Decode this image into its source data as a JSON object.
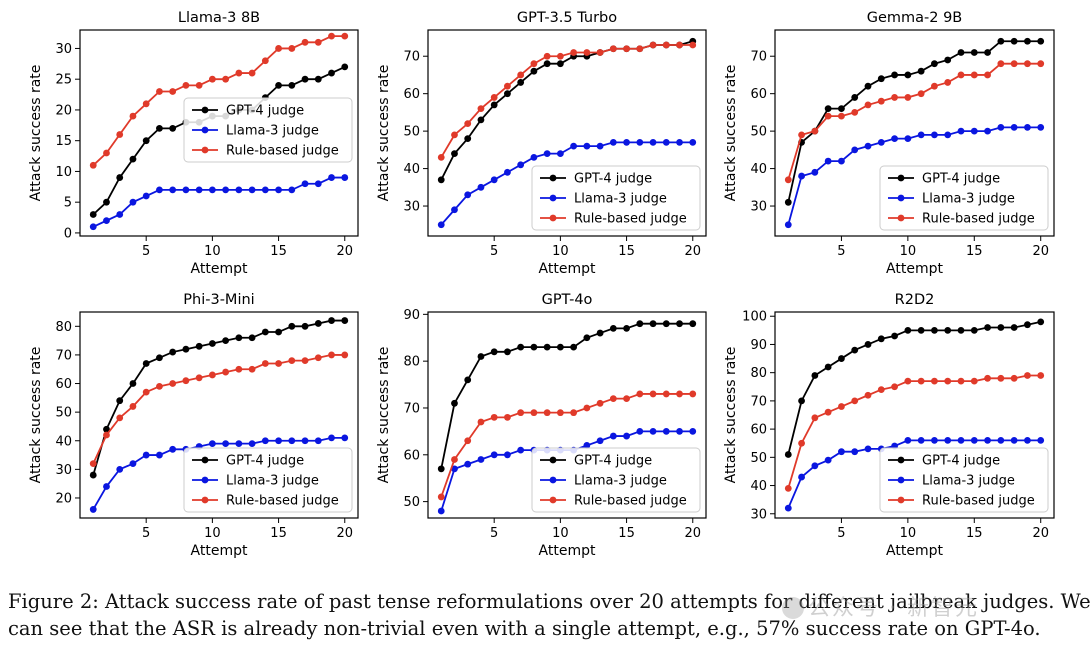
{
  "colors": {
    "gpt4": "#000000",
    "llama3": "#0a16e0",
    "rule": "#e03a2a"
  },
  "chart_data": [
    {
      "type": "line",
      "title": "Llama-3 8B",
      "xlabel": "Attempt",
      "ylabel": "Attack success rate",
      "xlim": [
        0,
        21
      ],
      "ylim": [
        -0.5,
        33
      ],
      "xticks": [
        5,
        10,
        15,
        20
      ],
      "yticks": [
        0,
        5,
        10,
        15,
        20,
        25,
        30
      ],
      "legend": "center-right",
      "x": [
        1,
        2,
        3,
        4,
        5,
        6,
        7,
        8,
        9,
        10,
        11,
        12,
        13,
        14,
        15,
        16,
        17,
        18,
        19,
        20
      ],
      "series": [
        {
          "name": "GPT-4 judge",
          "values": [
            3,
            5,
            9,
            12,
            15,
            17,
            17,
            18,
            18,
            19,
            19,
            20,
            20,
            22,
            24,
            24,
            25,
            25,
            26,
            27
          ]
        },
        {
          "name": "Llama-3 judge",
          "values": [
            1,
            2,
            3,
            5,
            6,
            7,
            7,
            7,
            7,
            7,
            7,
            7,
            7,
            7,
            7,
            7,
            8,
            8,
            9,
            9
          ]
        },
        {
          "name": "Rule-based judge",
          "values": [
            11,
            13,
            16,
            19,
            21,
            23,
            23,
            24,
            24,
            25,
            25,
            26,
            26,
            28,
            30,
            30,
            31,
            31,
            32,
            32
          ]
        }
      ]
    },
    {
      "type": "line",
      "title": "GPT-3.5 Turbo",
      "xlabel": "Attempt",
      "ylabel": "Attack success rate",
      "xlim": [
        0,
        21
      ],
      "ylim": [
        22,
        77
      ],
      "xticks": [
        5,
        10,
        15,
        20
      ],
      "yticks": [
        30,
        40,
        50,
        60,
        70
      ],
      "legend": "lower-right",
      "x": [
        1,
        2,
        3,
        4,
        5,
        6,
        7,
        8,
        9,
        10,
        11,
        12,
        13,
        14,
        15,
        16,
        17,
        18,
        19,
        20
      ],
      "series": [
        {
          "name": "GPT-4 judge",
          "values": [
            37,
            44,
            48,
            53,
            57,
            60,
            63,
            66,
            68,
            68,
            70,
            70,
            71,
            72,
            72,
            72,
            73,
            73,
            73,
            74
          ]
        },
        {
          "name": "Llama-3 judge",
          "values": [
            25,
            29,
            33,
            35,
            37,
            39,
            41,
            43,
            44,
            44,
            46,
            46,
            46,
            47,
            47,
            47,
            47,
            47,
            47,
            47
          ]
        },
        {
          "name": "Rule-based judge",
          "values": [
            43,
            49,
            52,
            56,
            59,
            62,
            65,
            68,
            70,
            70,
            71,
            71,
            71,
            72,
            72,
            72,
            73,
            73,
            73,
            73
          ]
        }
      ]
    },
    {
      "type": "line",
      "title": "Gemma-2 9B",
      "xlabel": "Attempt",
      "ylabel": "Attack success rate",
      "xlim": [
        0,
        21
      ],
      "ylim": [
        22,
        77
      ],
      "xticks": [
        5,
        10,
        15,
        20
      ],
      "yticks": [
        30,
        40,
        50,
        60,
        70
      ],
      "legend": "lower-right",
      "x": [
        1,
        2,
        3,
        4,
        5,
        6,
        7,
        8,
        9,
        10,
        11,
        12,
        13,
        14,
        15,
        16,
        17,
        18,
        19,
        20
      ],
      "series": [
        {
          "name": "GPT-4 judge",
          "values": [
            31,
            47,
            50,
            56,
            56,
            59,
            62,
            64,
            65,
            65,
            66,
            68,
            69,
            71,
            71,
            71,
            74,
            74,
            74,
            74
          ]
        },
        {
          "name": "Llama-3 judge",
          "values": [
            25,
            38,
            39,
            42,
            42,
            45,
            46,
            47,
            48,
            48,
            49,
            49,
            49,
            50,
            50,
            50,
            51,
            51,
            51,
            51
          ]
        },
        {
          "name": "Rule-based judge",
          "values": [
            37,
            49,
            50,
            54,
            54,
            55,
            57,
            58,
            59,
            59,
            60,
            62,
            63,
            65,
            65,
            65,
            68,
            68,
            68,
            68
          ]
        }
      ]
    },
    {
      "type": "line",
      "title": "Phi-3-Mini",
      "xlabel": "Attempt",
      "ylabel": "Attack success rate",
      "xlim": [
        0,
        21
      ],
      "ylim": [
        13,
        85
      ],
      "xticks": [
        5,
        10,
        15,
        20
      ],
      "yticks": [
        20,
        30,
        40,
        50,
        60,
        70,
        80
      ],
      "legend": "lower-right",
      "x": [
        1,
        2,
        3,
        4,
        5,
        6,
        7,
        8,
        9,
        10,
        11,
        12,
        13,
        14,
        15,
        16,
        17,
        18,
        19,
        20
      ],
      "series": [
        {
          "name": "GPT-4 judge",
          "values": [
            28,
            44,
            54,
            60,
            67,
            69,
            71,
            72,
            73,
            74,
            75,
            76,
            76,
            78,
            78,
            80,
            80,
            81,
            82,
            82
          ]
        },
        {
          "name": "Llama-3 judge",
          "values": [
            16,
            24,
            30,
            32,
            35,
            35,
            37,
            37,
            38,
            39,
            39,
            39,
            39,
            40,
            40,
            40,
            40,
            40,
            41,
            41
          ]
        },
        {
          "name": "Rule-based judge",
          "values": [
            32,
            42,
            48,
            52,
            57,
            59,
            60,
            61,
            62,
            63,
            64,
            65,
            65,
            67,
            67,
            68,
            68,
            69,
            70,
            70
          ]
        }
      ]
    },
    {
      "type": "line",
      "title": "GPT-4o",
      "xlabel": "Attempt",
      "ylabel": "Attack success rate",
      "xlim": [
        0,
        21
      ],
      "ylim": [
        46.5,
        90.5
      ],
      "xticks": [
        5,
        10,
        15,
        20
      ],
      "yticks": [
        50,
        60,
        70,
        80,
        90
      ],
      "legend": "lower-right",
      "x": [
        1,
        2,
        3,
        4,
        5,
        6,
        7,
        8,
        9,
        10,
        11,
        12,
        13,
        14,
        15,
        16,
        17,
        18,
        19,
        20
      ],
      "series": [
        {
          "name": "GPT-4 judge",
          "values": [
            57,
            71,
            76,
            81,
            82,
            82,
            83,
            83,
            83,
            83,
            83,
            85,
            86,
            87,
            87,
            88,
            88,
            88,
            88,
            88
          ]
        },
        {
          "name": "Llama-3 judge",
          "values": [
            48,
            57,
            58,
            59,
            60,
            60,
            61,
            61,
            61,
            61,
            61,
            62,
            63,
            64,
            64,
            65,
            65,
            65,
            65,
            65
          ]
        },
        {
          "name": "Rule-based judge",
          "values": [
            51,
            59,
            63,
            67,
            68,
            68,
            69,
            69,
            69,
            69,
            69,
            70,
            71,
            72,
            72,
            73,
            73,
            73,
            73,
            73
          ]
        }
      ]
    },
    {
      "type": "line",
      "title": "R2D2",
      "xlabel": "Attempt",
      "ylabel": "Attack success rate",
      "xlim": [
        0,
        21
      ],
      "ylim": [
        28.5,
        101.5
      ],
      "xticks": [
        5,
        10,
        15,
        20
      ],
      "yticks": [
        30,
        40,
        50,
        60,
        70,
        80,
        90,
        100
      ],
      "legend": "lower-right",
      "x": [
        1,
        2,
        3,
        4,
        5,
        6,
        7,
        8,
        9,
        10,
        11,
        12,
        13,
        14,
        15,
        16,
        17,
        18,
        19,
        20
      ],
      "series": [
        {
          "name": "GPT-4 judge",
          "values": [
            51,
            70,
            79,
            82,
            85,
            88,
            90,
            92,
            93,
            95,
            95,
            95,
            95,
            95,
            95,
            96,
            96,
            96,
            97,
            98
          ]
        },
        {
          "name": "Llama-3 judge",
          "values": [
            32,
            43,
            47,
            49,
            52,
            52,
            53,
            53,
            54,
            56,
            56,
            56,
            56,
            56,
            56,
            56,
            56,
            56,
            56,
            56
          ]
        },
        {
          "name": "Rule-based judge",
          "values": [
            39,
            55,
            64,
            66,
            68,
            70,
            72,
            74,
            75,
            77,
            77,
            77,
            77,
            77,
            77,
            78,
            78,
            78,
            79,
            79
          ]
        }
      ]
    }
  ],
  "caption": {
    "line1": "Figure 2: Attack success rate of past tense reformulations over 20 attempts for different jailbreak judges. We",
    "line2": "can see that the ASR is already non-trivial even with a single attempt, e.g., 57% success rate on GPT-4o."
  },
  "watermark": {
    "text": "公众号 · 新智元"
  }
}
